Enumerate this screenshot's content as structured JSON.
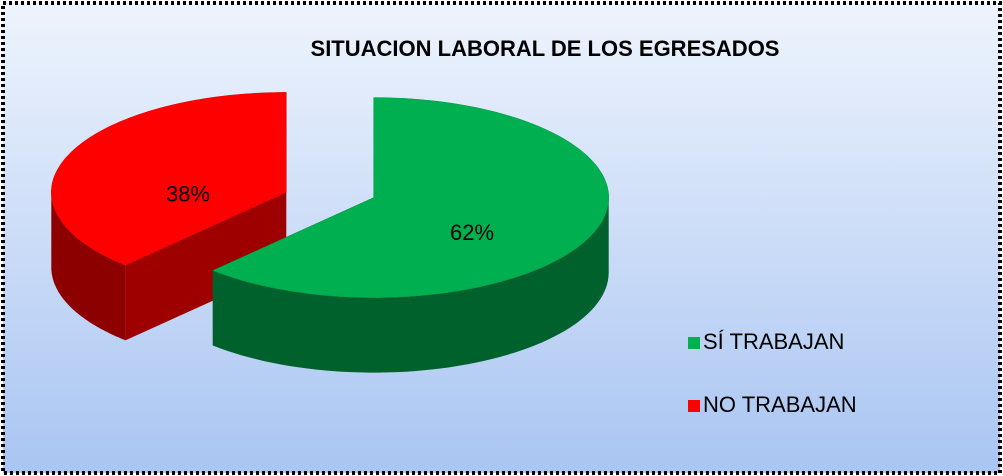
{
  "chart_data": {
    "type": "pie",
    "title": "SITUACION LABORAL DE LOS EGRESADOS",
    "categories": [
      "SÍ TRABAJAN",
      "NO TRABAJAN"
    ],
    "values": [
      62,
      38
    ],
    "value_labels": [
      "62%",
      "38%"
    ],
    "colors": [
      "#00b050",
      "#ff0000"
    ],
    "legend": "right"
  }
}
